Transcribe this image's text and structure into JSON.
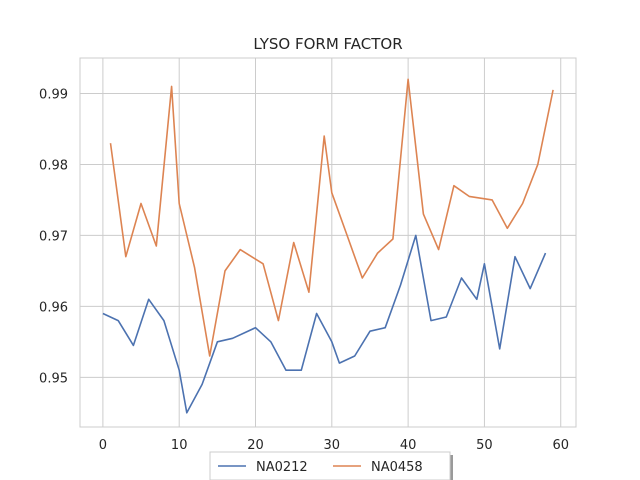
{
  "chart_data": {
    "type": "line",
    "title": "LYSO FORM FACTOR",
    "xlabel": "",
    "ylabel": "",
    "xlim": [
      -3,
      62
    ],
    "ylim": [
      0.943,
      0.995
    ],
    "xticks": [
      0,
      10,
      20,
      30,
      40,
      50,
      60
    ],
    "xtick_labels": [
      "0",
      "10",
      "20",
      "30",
      "40",
      "50",
      "60"
    ],
    "yticks": [
      0.95,
      0.96,
      0.97,
      0.98,
      0.99
    ],
    "ytick_labels": [
      "0.95",
      "0.96",
      "0.97",
      "0.98",
      "0.99"
    ],
    "grid": true,
    "legend_position": "bottom-center",
    "series": [
      {
        "name": "NA0212",
        "color": "#4c72b0",
        "x": [
          0,
          2,
          4,
          6,
          8,
          10,
          11,
          13,
          15,
          17,
          20,
          22,
          24,
          26,
          28,
          30,
          31,
          33,
          35,
          37,
          39,
          41,
          43,
          45,
          47,
          49,
          50,
          52,
          54,
          56,
          58
        ],
        "y": [
          0.959,
          0.958,
          0.9545,
          0.961,
          0.958,
          0.951,
          0.945,
          0.949,
          0.955,
          0.9555,
          0.957,
          0.955,
          0.951,
          0.951,
          0.959,
          0.955,
          0.952,
          0.953,
          0.9565,
          0.957,
          0.963,
          0.97,
          0.958,
          0.9585,
          0.964,
          0.961,
          0.966,
          0.954,
          0.967,
          0.9625,
          0.9675
        ]
      },
      {
        "name": "NA0458",
        "color": "#dd8452",
        "x": [
          1,
          3,
          5,
          7,
          9,
          10,
          12,
          14,
          16,
          18,
          21,
          23,
          25,
          27,
          29,
          30,
          32,
          34,
          36,
          38,
          40,
          42,
          44,
          46,
          48,
          51,
          53,
          55,
          57,
          59
        ],
        "y": [
          0.983,
          0.967,
          0.9745,
          0.9685,
          0.991,
          0.9745,
          0.9655,
          0.953,
          0.965,
          0.968,
          0.966,
          0.958,
          0.969,
          0.962,
          0.984,
          0.976,
          0.97,
          0.964,
          0.9675,
          0.9695,
          0.992,
          0.973,
          0.968,
          0.977,
          0.9755,
          0.975,
          0.971,
          0.9745,
          0.98,
          0.9905
        ]
      }
    ]
  }
}
